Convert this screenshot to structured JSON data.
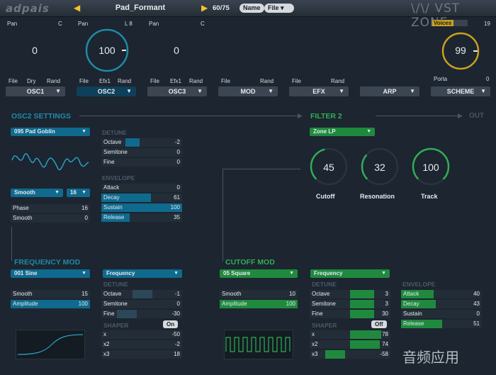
{
  "topbar": {
    "logo": "adpais",
    "preset": "Pad_Formant",
    "count": "60/75",
    "name_btn": "Name",
    "file_btn": "File",
    "brand": "\\/\\/ VST ZONE"
  },
  "mixer": {
    "pan1": "Pan",
    "c1": "C",
    "v1": "0",
    "pan2": "Pan",
    "l8": "L 8",
    "v2": "100",
    "pan3": "Pan",
    "c3": "C",
    "v3": "0",
    "voices_label": "Voices",
    "voices_value": "19",
    "master": "99",
    "porta_label": "Porta",
    "porta_value": "0"
  },
  "tabbar": {
    "osc1": {
      "file": "File",
      "dry": "Dry",
      "rand": "Rand",
      "label": "OSC1"
    },
    "osc2": {
      "file": "File",
      "efx": "Efx1",
      "rand": "Rand",
      "label": "OSC2"
    },
    "osc3": {
      "file": "File",
      "efx": "Efx1",
      "rand": "Rand",
      "label": "OSC3"
    },
    "mod": {
      "file": "File",
      "rand": "Rand",
      "label": "MOD"
    },
    "efx": {
      "file": "File",
      "rand": "Rand",
      "label": "EFX"
    },
    "arp": {
      "label": "ARP"
    },
    "scheme": {
      "label": "SCHEME"
    }
  },
  "osc_settings": {
    "title": "OSC2 SETTINGS",
    "wave": "095 Pad Goblin",
    "smooth_mode": "Smooth",
    "smooth_num": "16",
    "phase": {
      "name": "Phase",
      "value": "16"
    },
    "smooth": {
      "name": "Smooth",
      "value": "0"
    },
    "detune_title": "DETUNE",
    "octave": {
      "name": "Octave",
      "value": "-2",
      "level": 0.25
    },
    "semitone": {
      "name": "Semitone",
      "value": "0"
    },
    "fine": {
      "name": "Fine",
      "value": "0"
    },
    "envelope_title": "ENVELOPE",
    "attack": {
      "name": "Attack",
      "value": "0"
    },
    "decay": {
      "name": "Decay",
      "value": "61",
      "level": 0.61
    },
    "sustain": {
      "name": "Sustain",
      "value": "100",
      "level": 1.0
    },
    "release": {
      "name": "Release",
      "value": "35",
      "level": 0.35
    }
  },
  "filter": {
    "title": "FILTER 2",
    "out": "OUT",
    "type": "Zone LP",
    "cutoff": {
      "value": "45",
      "label": "Cutoff",
      "level": 0.45
    },
    "resonation": {
      "value": "32",
      "label": "Resonation",
      "level": 0.32
    },
    "track": {
      "value": "100",
      "label": "Track",
      "level": 1.0
    }
  },
  "freq_mod": {
    "title": "FREQUENCY MOD",
    "wave": "001 Sine",
    "target": "Frequency",
    "smooth": {
      "name": "Smooth",
      "value": "15"
    },
    "amplitude": {
      "name": "Amplitude",
      "value": "100",
      "level": 1.0
    },
    "detune_title": "DETUNE",
    "octave": {
      "name": "Octave",
      "value": "-1",
      "level": 0.4
    },
    "semitone": {
      "name": "Semitone",
      "value": "0"
    },
    "fine": {
      "name": "Fine",
      "value": "-30",
      "level": 0.3
    },
    "shaper_title": "SHAPER",
    "shaper_state": "On",
    "x": {
      "name": "x",
      "value": "-50"
    },
    "x2": {
      "name": "x2",
      "value": "-2"
    },
    "x3": {
      "name": "x3",
      "value": "18"
    }
  },
  "cutoff_mod": {
    "title": "CUTOFF MOD",
    "wave": "05 Square",
    "target": "Frequency",
    "smooth": {
      "name": "Smooth",
      "value": "10"
    },
    "amplitude": {
      "name": "Amplitude",
      "value": "100",
      "level": 1.0
    },
    "detune_title": "DETUNE",
    "octave": {
      "name": "Octave",
      "value": "3",
      "level": 0.6
    },
    "semitone": {
      "name": "Semitone",
      "value": "3",
      "level": 0.6
    },
    "fine": {
      "name": "Fine",
      "value": "30",
      "level": 0.6
    },
    "shaper_title": "SHAPER",
    "shaper_state": "Off",
    "x": {
      "name": "x",
      "value": "78",
      "level": 0.78
    },
    "x2": {
      "name": "x2",
      "value": "74",
      "level": 0.74
    },
    "x3": {
      "name": "x3",
      "value": "-58",
      "level": 0.3
    }
  },
  "env2": {
    "title": "ENVELOPE",
    "attack": {
      "name": "Attack",
      "value": "40",
      "level": 0.4
    },
    "decay": {
      "name": "Decay",
      "value": "43",
      "level": 0.43
    },
    "sustain": {
      "name": "Sustain",
      "value": "0"
    },
    "release": {
      "name": "Release",
      "value": "51",
      "level": 0.51
    }
  },
  "watermark": "音频应用",
  "colors": {
    "teal": "#0f6a8e",
    "green": "#1f8a3e",
    "accent": "#f2c230",
    "bg": "#1c2530"
  }
}
